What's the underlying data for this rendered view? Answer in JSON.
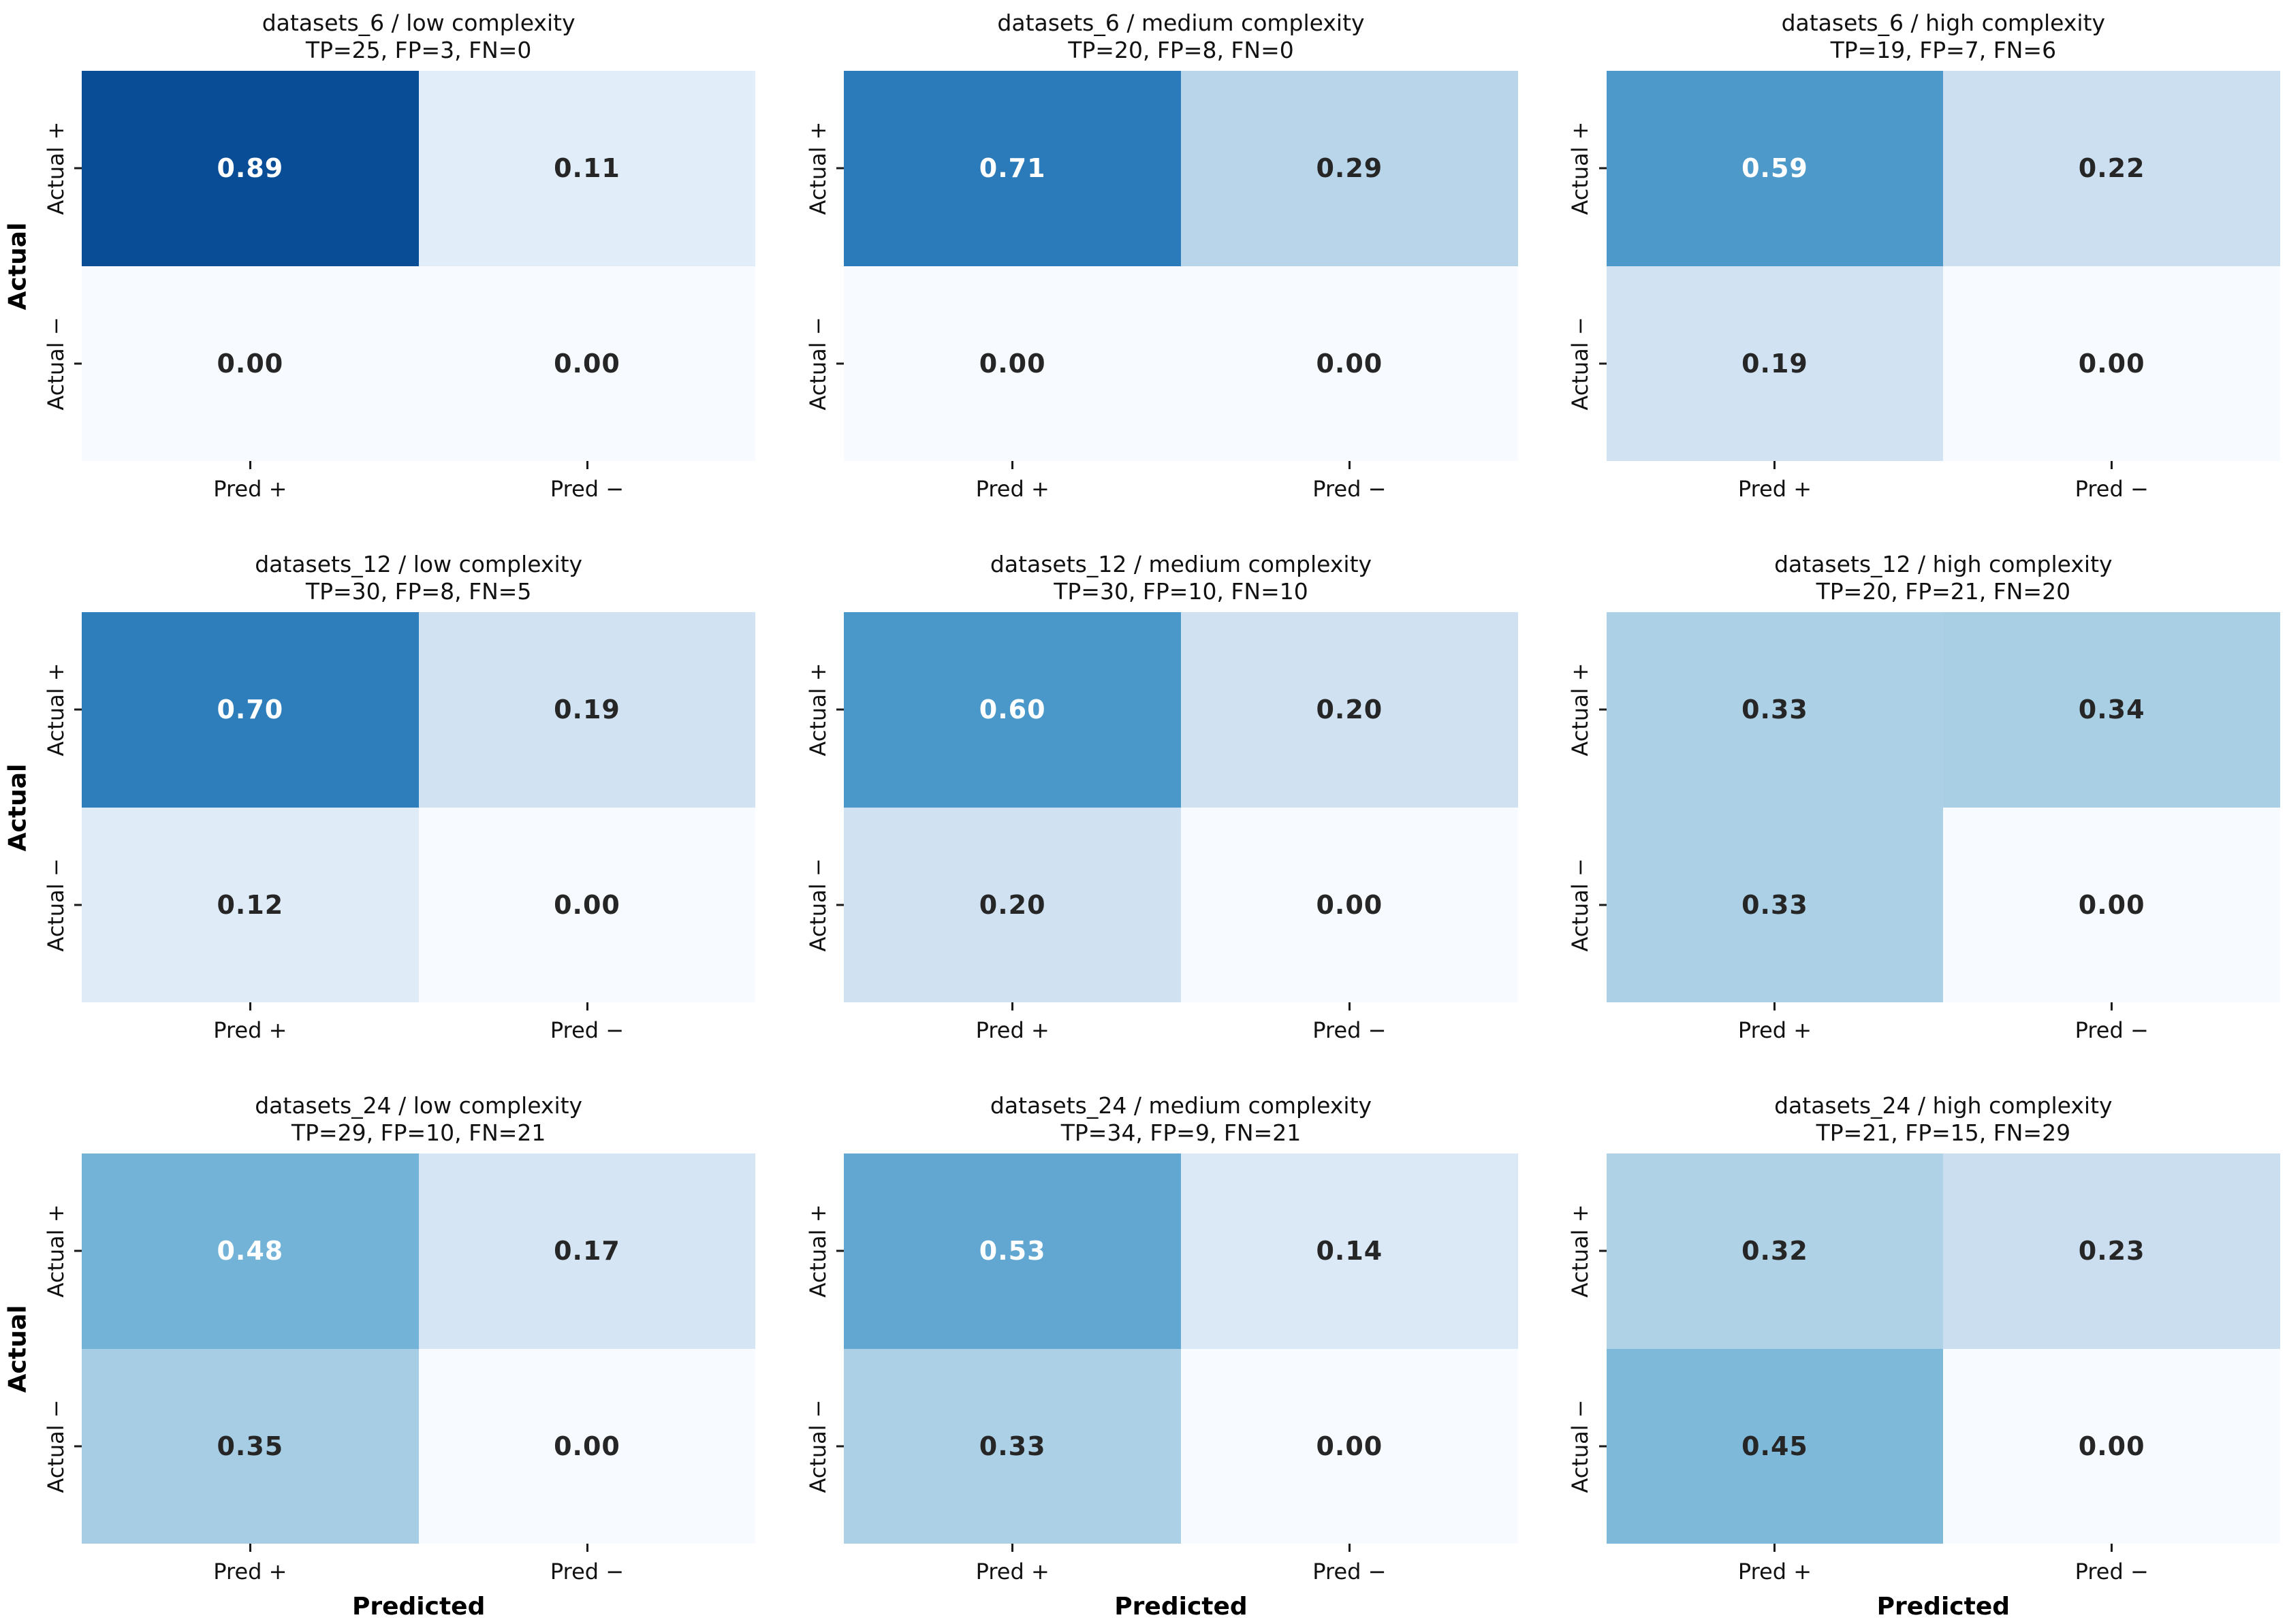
{
  "labels": {
    "ylabel": "Actual",
    "xlabel": "Predicted",
    "yticklabels": [
      "Actual +",
      "Actual −"
    ],
    "xticklabels": [
      "Pred +",
      "Pred −"
    ]
  },
  "colors": {
    "background": "#ffffff",
    "axis_text": "#000000",
    "annotation_dark": "#262626",
    "annotation_light": "#ffffff",
    "colormap": "Blues"
  },
  "panels": [
    {
      "title": "datasets_6 / low complexity",
      "subtitle": "TP=25, FP=3, FN=0",
      "show_ylabel": true,
      "show_xlabel": false,
      "cells": [
        {
          "value": "0.89",
          "bg": "#084d96",
          "text": "#ffffff"
        },
        {
          "value": "0.11",
          "bg": "#e1edf8",
          "text": "#262626"
        },
        {
          "value": "0.00",
          "bg": "#f7fbff",
          "text": "#262626"
        },
        {
          "value": "0.00",
          "bg": "#f7fbff",
          "text": "#262626"
        }
      ]
    },
    {
      "title": "datasets_6 / medium complexity",
      "subtitle": "TP=20, FP=8, FN=0",
      "show_ylabel": false,
      "show_xlabel": false,
      "cells": [
        {
          "value": "0.71",
          "bg": "#2b7bba",
          "text": "#ffffff"
        },
        {
          "value": "0.29",
          "bg": "#b9d5ea",
          "text": "#262626"
        },
        {
          "value": "0.00",
          "bg": "#f7fbff",
          "text": "#262626"
        },
        {
          "value": "0.00",
          "bg": "#f7fbff",
          "text": "#262626"
        }
      ]
    },
    {
      "title": "datasets_6 / high complexity",
      "subtitle": "TP=19, FP=7, FN=6",
      "show_ylabel": false,
      "show_xlabel": false,
      "cells": [
        {
          "value": "0.59",
          "bg": "#4d9aca",
          "text": "#ffffff"
        },
        {
          "value": "0.22",
          "bg": "#ccdff1",
          "text": "#262626"
        },
        {
          "value": "0.19",
          "bg": "#d1e3f3",
          "text": "#262626"
        },
        {
          "value": "0.00",
          "bg": "#f7fbff",
          "text": "#262626"
        }
      ]
    },
    {
      "title": "datasets_12 / low complexity",
      "subtitle": "TP=30, FP=8, FN=5",
      "show_ylabel": true,
      "show_xlabel": false,
      "cells": [
        {
          "value": "0.70",
          "bg": "#2e7ebc",
          "text": "#ffffff"
        },
        {
          "value": "0.19",
          "bg": "#d1e3f3",
          "text": "#262626"
        },
        {
          "value": "0.12",
          "bg": "#dfecf7",
          "text": "#262626"
        },
        {
          "value": "0.00",
          "bg": "#f7fbff",
          "text": "#262626"
        }
      ]
    },
    {
      "title": "datasets_12 / medium complexity",
      "subtitle": "TP=30, FP=10, FN=10",
      "show_ylabel": false,
      "show_xlabel": false,
      "cells": [
        {
          "value": "0.60",
          "bg": "#4a98c9",
          "text": "#ffffff"
        },
        {
          "value": "0.20",
          "bg": "#d0e1f2",
          "text": "#262626"
        },
        {
          "value": "0.20",
          "bg": "#d0e1f2",
          "text": "#262626"
        },
        {
          "value": "0.00",
          "bg": "#f7fbff",
          "text": "#262626"
        }
      ]
    },
    {
      "title": "datasets_12 / high complexity",
      "subtitle": "TP=20, FP=21, FN=20",
      "show_ylabel": false,
      "show_xlabel": false,
      "cells": [
        {
          "value": "0.33",
          "bg": "#acd0e6",
          "text": "#262626"
        },
        {
          "value": "0.34",
          "bg": "#a9cfe5",
          "text": "#262626"
        },
        {
          "value": "0.33",
          "bg": "#acd0e6",
          "text": "#262626"
        },
        {
          "value": "0.00",
          "bg": "#f7fbff",
          "text": "#262626"
        }
      ]
    },
    {
      "title": "datasets_24 / low complexity",
      "subtitle": "TP=29, FP=10, FN=21",
      "show_ylabel": true,
      "show_xlabel": true,
      "cells": [
        {
          "value": "0.48",
          "bg": "#73b3d8",
          "text": "#ffffff"
        },
        {
          "value": "0.17",
          "bg": "#d5e5f4",
          "text": "#262626"
        },
        {
          "value": "0.35",
          "bg": "#a6cde4",
          "text": "#262626"
        },
        {
          "value": "0.00",
          "bg": "#f7fbff",
          "text": "#262626"
        }
      ]
    },
    {
      "title": "datasets_24 / medium complexity",
      "subtitle": "TP=34, FP=9, FN=21",
      "show_ylabel": false,
      "show_xlabel": true,
      "cells": [
        {
          "value": "0.53",
          "bg": "#61a7d2",
          "text": "#ffffff"
        },
        {
          "value": "0.14",
          "bg": "#dbe9f6",
          "text": "#262626"
        },
        {
          "value": "0.33",
          "bg": "#acd0e6",
          "text": "#262626"
        },
        {
          "value": "0.00",
          "bg": "#f7fbff",
          "text": "#262626"
        }
      ]
    },
    {
      "title": "datasets_24 / high complexity",
      "subtitle": "TP=21, FP=15, FN=29",
      "show_ylabel": false,
      "show_xlabel": true,
      "cells": [
        {
          "value": "0.32",
          "bg": "#b0d2e7",
          "text": "#262626"
        },
        {
          "value": "0.23",
          "bg": "#cadef0",
          "text": "#262626"
        },
        {
          "value": "0.45",
          "bg": "#7fb9da",
          "text": "#262626"
        },
        {
          "value": "0.00",
          "bg": "#f7fbff",
          "text": "#262626"
        }
      ]
    }
  ],
  "chart_data": [
    {
      "type": "heatmap",
      "title": "datasets_6 / low complexity",
      "subtitle": "TP=25, FP=3, FN=0",
      "dataset": "datasets_6",
      "complexity": "low",
      "tp": 25,
      "fp": 3,
      "fn": 0,
      "rows": [
        "Actual +",
        "Actual −"
      ],
      "cols": [
        "Pred +",
        "Pred −"
      ],
      "values": [
        [
          0.89,
          0.11
        ],
        [
          0.0,
          0.0
        ]
      ],
      "colormap": "Blues",
      "vmin": 0,
      "vmax": 1
    },
    {
      "type": "heatmap",
      "title": "datasets_6 / medium complexity",
      "subtitle": "TP=20, FP=8, FN=0",
      "dataset": "datasets_6",
      "complexity": "medium",
      "tp": 20,
      "fp": 8,
      "fn": 0,
      "rows": [
        "Actual +",
        "Actual −"
      ],
      "cols": [
        "Pred +",
        "Pred −"
      ],
      "values": [
        [
          0.71,
          0.29
        ],
        [
          0.0,
          0.0
        ]
      ],
      "colormap": "Blues",
      "vmin": 0,
      "vmax": 1
    },
    {
      "type": "heatmap",
      "title": "datasets_6 / high complexity",
      "subtitle": "TP=19, FP=7, FN=6",
      "dataset": "datasets_6",
      "complexity": "high",
      "tp": 19,
      "fp": 7,
      "fn": 6,
      "rows": [
        "Actual +",
        "Actual −"
      ],
      "cols": [
        "Pred +",
        "Pred −"
      ],
      "values": [
        [
          0.59,
          0.22
        ],
        [
          0.19,
          0.0
        ]
      ],
      "colormap": "Blues",
      "vmin": 0,
      "vmax": 1
    },
    {
      "type": "heatmap",
      "title": "datasets_12 / low complexity",
      "subtitle": "TP=30, FP=8, FN=5",
      "dataset": "datasets_12",
      "complexity": "low",
      "tp": 30,
      "fp": 8,
      "fn": 5,
      "rows": [
        "Actual +",
        "Actual −"
      ],
      "cols": [
        "Pred +",
        "Pred −"
      ],
      "values": [
        [
          0.7,
          0.19
        ],
        [
          0.12,
          0.0
        ]
      ],
      "colormap": "Blues",
      "vmin": 0,
      "vmax": 1
    },
    {
      "type": "heatmap",
      "title": "datasets_12 / medium complexity",
      "subtitle": "TP=30, FP=10, FN=10",
      "dataset": "datasets_12",
      "complexity": "medium",
      "tp": 30,
      "fp": 10,
      "fn": 10,
      "rows": [
        "Actual +",
        "Actual −"
      ],
      "cols": [
        "Pred +",
        "Pred −"
      ],
      "values": [
        [
          0.6,
          0.2
        ],
        [
          0.2,
          0.0
        ]
      ],
      "colormap": "Blues",
      "vmin": 0,
      "vmax": 1
    },
    {
      "type": "heatmap",
      "title": "datasets_12 / high complexity",
      "subtitle": "TP=20, FP=21, FN=20",
      "dataset": "datasets_12",
      "complexity": "high",
      "tp": 20,
      "fp": 21,
      "fn": 20,
      "rows": [
        "Actual +",
        "Actual −"
      ],
      "cols": [
        "Pred +",
        "Pred −"
      ],
      "values": [
        [
          0.33,
          0.34
        ],
        [
          0.33,
          0.0
        ]
      ],
      "colormap": "Blues",
      "vmin": 0,
      "vmax": 1
    },
    {
      "type": "heatmap",
      "title": "datasets_24 / low complexity",
      "subtitle": "TP=29, FP=10, FN=21",
      "dataset": "datasets_24",
      "complexity": "low",
      "tp": 29,
      "fp": 10,
      "fn": 21,
      "rows": [
        "Actual +",
        "Actual −"
      ],
      "cols": [
        "Pred +",
        "Pred −"
      ],
      "values": [
        [
          0.48,
          0.17
        ],
        [
          0.35,
          0.0
        ]
      ],
      "colormap": "Blues",
      "vmin": 0,
      "vmax": 1
    },
    {
      "type": "heatmap",
      "title": "datasets_24 / medium complexity",
      "subtitle": "TP=34, FP=9, FN=21",
      "dataset": "datasets_24",
      "complexity": "medium",
      "tp": 34,
      "fp": 9,
      "fn": 21,
      "rows": [
        "Actual +",
        "Actual −"
      ],
      "cols": [
        "Pred +",
        "Pred −"
      ],
      "values": [
        [
          0.53,
          0.14
        ],
        [
          0.33,
          0.0
        ]
      ],
      "colormap": "Blues",
      "vmin": 0,
      "vmax": 1
    },
    {
      "type": "heatmap",
      "title": "datasets_24 / high complexity",
      "subtitle": "TP=21, FP=15, FN=29",
      "dataset": "datasets_24",
      "complexity": "high",
      "tp": 21,
      "fp": 15,
      "fn": 29,
      "rows": [
        "Actual +",
        "Actual −"
      ],
      "cols": [
        "Pred +",
        "Pred −"
      ],
      "values": [
        [
          0.32,
          0.23
        ],
        [
          0.45,
          0.0
        ]
      ],
      "colormap": "Blues",
      "vmin": 0,
      "vmax": 1
    }
  ]
}
